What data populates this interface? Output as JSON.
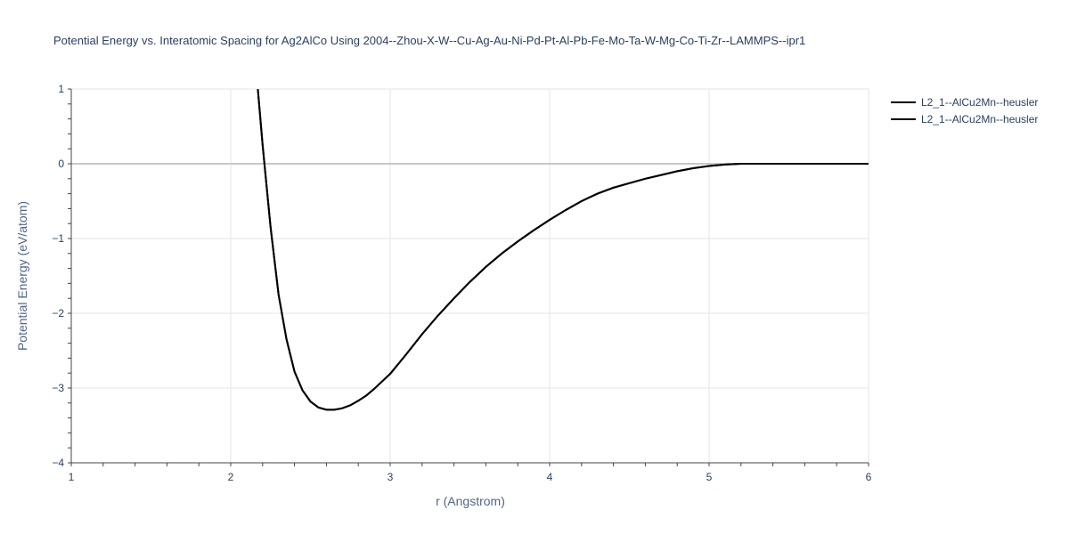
{
  "chart_data": {
    "type": "line",
    "title": "Potential Energy vs. Interatomic Spacing for Ag2AlCo Using 2004--Zhou-X-W--Cu-Ag-Au-Ni-Pd-Pt-Al-Pb-Fe-Mo-Ta-W-Mg-Co-Ti-Zr--LAMMPS--ipr1",
    "xlabel": "r (Angstrom)",
    "ylabel": "Potential Energy (eV/atom)",
    "xlim": [
      1,
      6
    ],
    "ylim": [
      -4,
      1
    ],
    "x_ticks": [
      "1",
      "2",
      "3",
      "4",
      "5",
      "6"
    ],
    "y_ticks": [
      "1",
      "0",
      "−1",
      "−2",
      "−3",
      "−4"
    ],
    "grid": true,
    "legend_position": "top-right",
    "series": [
      {
        "name": "L2_1--AlCu2Mn--heusler",
        "color": "#000000",
        "x": [
          2.17,
          2.2,
          2.25,
          2.3,
          2.35,
          2.4,
          2.45,
          2.5,
          2.55,
          2.6,
          2.65,
          2.7,
          2.75,
          2.8,
          2.85,
          2.9,
          2.95,
          3.0,
          3.1,
          3.2,
          3.3,
          3.4,
          3.5,
          3.6,
          3.7,
          3.8,
          3.9,
          4.0,
          4.1,
          4.2,
          4.3,
          4.4,
          4.5,
          4.6,
          4.7,
          4.8,
          4.9,
          5.0,
          5.1,
          5.2,
          5.3,
          5.4,
          5.5,
          5.6,
          5.7,
          5.8,
          5.9,
          6.0
        ],
        "y": [
          1.0,
          0.25,
          -0.85,
          -1.75,
          -2.35,
          -2.78,
          -3.03,
          -3.18,
          -3.26,
          -3.29,
          -3.29,
          -3.27,
          -3.23,
          -3.17,
          -3.1,
          -3.01,
          -2.91,
          -2.81,
          -2.55,
          -2.28,
          -2.03,
          -1.8,
          -1.58,
          -1.38,
          -1.2,
          -1.04,
          -0.89,
          -0.75,
          -0.62,
          -0.5,
          -0.4,
          -0.32,
          -0.26,
          -0.2,
          -0.15,
          -0.1,
          -0.06,
          -0.03,
          -0.01,
          0.0,
          0.0,
          0.0,
          0.0,
          0.0,
          0.0,
          0.0,
          0.0,
          0.0
        ]
      },
      {
        "name": "L2_1--AlCu2Mn--heusler",
        "color": "#000000",
        "x": [
          2.17,
          2.2,
          2.25,
          2.3,
          2.35,
          2.4,
          2.45,
          2.5,
          2.55,
          2.6,
          2.65,
          2.7,
          2.75,
          2.8,
          2.85,
          2.9,
          2.95,
          3.0,
          3.1,
          3.2,
          3.3,
          3.4,
          3.5,
          3.6,
          3.7,
          3.8,
          3.9,
          4.0,
          4.1,
          4.2,
          4.3,
          4.4,
          4.5,
          4.6,
          4.7,
          4.8,
          4.9,
          5.0,
          5.1,
          5.2,
          5.3,
          5.4,
          5.5,
          5.6,
          5.7,
          5.8,
          5.9,
          6.0
        ],
        "y": [
          1.0,
          0.25,
          -0.85,
          -1.75,
          -2.35,
          -2.78,
          -3.03,
          -3.18,
          -3.26,
          -3.29,
          -3.29,
          -3.27,
          -3.23,
          -3.17,
          -3.1,
          -3.01,
          -2.91,
          -2.81,
          -2.55,
          -2.28,
          -2.03,
          -1.8,
          -1.58,
          -1.38,
          -1.2,
          -1.04,
          -0.89,
          -0.75,
          -0.62,
          -0.5,
          -0.4,
          -0.32,
          -0.26,
          -0.2,
          -0.15,
          -0.1,
          -0.06,
          -0.03,
          -0.01,
          0.0,
          0.0,
          0.0,
          0.0,
          0.0,
          0.0,
          0.0,
          0.0,
          0.0
        ]
      }
    ]
  }
}
